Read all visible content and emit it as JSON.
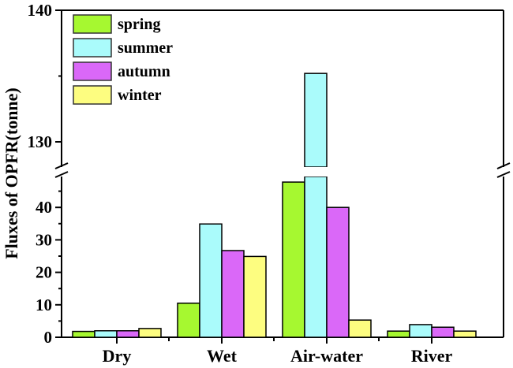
{
  "chart_data": {
    "type": "bar",
    "title": "",
    "xlabel": "",
    "ylabel": "Fluxes of OPFR(tonne)",
    "categories": [
      "Dry",
      "Wet",
      "Air-water",
      "River"
    ],
    "series": [
      {
        "name": "spring",
        "color": "#A6F830",
        "values": [
          1.8,
          10.5,
          47.8,
          1.9
        ]
      },
      {
        "name": "summer",
        "color": "#AAFBFB",
        "values": [
          2.0,
          34.9,
          135.2,
          3.9
        ]
      },
      {
        "name": "autumn",
        "color": "#DA68F8",
        "values": [
          2.0,
          26.7,
          40.0,
          3.1
        ]
      },
      {
        "name": "winter",
        "color": "#FDFD80",
        "values": [
          2.7,
          24.9,
          5.3,
          1.9
        ]
      }
    ],
    "y_axis": {
      "broken": true,
      "lower_segment": {
        "range": [
          0,
          45
        ],
        "ticks": [
          0,
          10,
          20,
          30,
          40
        ]
      },
      "upper_segment": {
        "range": [
          127.5,
          140
        ],
        "ticks": [
          130,
          140
        ]
      }
    },
    "ylim": [
      0,
      140
    ],
    "grid": false,
    "legend_position": "upper left"
  },
  "legend": {
    "items": [
      {
        "label": "spring",
        "color": "#A6F830"
      },
      {
        "label": "summer",
        "color": "#AAFBFB"
      },
      {
        "label": "autumn",
        "color": "#DA68F8"
      },
      {
        "label": "winter",
        "color": "#FDFD80"
      }
    ]
  },
  "axis": {
    "ylabel": "Fluxes of OPFR(tonne)",
    "lower_tick_labels": [
      "0",
      "10",
      "20",
      "30",
      "40"
    ],
    "upper_tick_labels": [
      "130",
      "140"
    ],
    "category_labels": [
      "Dry",
      "Wet",
      "Air-water",
      "River"
    ]
  }
}
